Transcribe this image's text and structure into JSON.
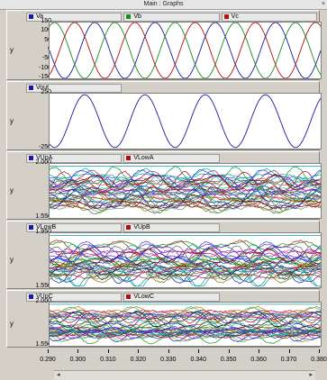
{
  "window": {
    "title": "Main : Graphs",
    "close_glyph": "×"
  },
  "chart_data": [
    {
      "type": "line",
      "ylabel": "y",
      "ylim": [
        -150,
        150
      ],
      "yticks": [
        "150",
        "100",
        "50",
        "0",
        "-50",
        "-100",
        "-150"
      ],
      "series": [
        {
          "name": "Va",
          "color": "#1a1a9a"
        },
        {
          "name": "Vb",
          "color": "#1a8a1a"
        },
        {
          "name": "Vc",
          "color": "#b01010"
        }
      ],
      "x": [
        0.29,
        0.38
      ],
      "wave": {
        "amplitude": 150,
        "frequency_hz": 50,
        "phases_deg": [
          0,
          -120,
          120
        ]
      }
    },
    {
      "type": "line",
      "ylabel": "y",
      "ylim": [
        -250,
        250
      ],
      "yticks": [
        "250",
        "-250"
      ],
      "series": [
        {
          "name": "Vout",
          "color": "#1a1a9a"
        }
      ],
      "x": [
        0.29,
        0.38
      ],
      "wave": {
        "amplitude": 240,
        "frequency_hz": 50,
        "phases_deg": [
          60
        ]
      }
    },
    {
      "type": "line",
      "ylabel": "y",
      "ylim": [
        1.55,
        2.0
      ],
      "yticks": [
        "2.000",
        "1.550"
      ],
      "series": [
        {
          "name": "VUpA",
          "color": "#1a1a9a"
        },
        {
          "name": "VLowA",
          "color": "#b01010"
        }
      ],
      "x": [
        0.29,
        0.38
      ]
    },
    {
      "type": "line",
      "ylabel": "y",
      "ylim": [
        1.55,
        1.95
      ],
      "yticks": [
        "1.950",
        "1.550"
      ],
      "series": [
        {
          "name": "VLowB",
          "color": "#1a1a9a"
        },
        {
          "name": "VUpB",
          "color": "#b01010"
        }
      ],
      "x": [
        0.29,
        0.38
      ]
    },
    {
      "type": "line",
      "ylabel": "y",
      "ylim": [
        1.55,
        2.0
      ],
      "yticks": [
        "2.000",
        "1.550"
      ],
      "series": [
        {
          "name": "VUpC",
          "color": "#1a1a9a"
        },
        {
          "name": "VLowC",
          "color": "#b01010"
        }
      ],
      "x": [
        0.29,
        0.38
      ]
    }
  ],
  "xaxis": {
    "ticks": [
      "0.290",
      "0.300",
      "0.310",
      "0.320",
      "0.330",
      "0.340",
      "0.350",
      "0.360",
      "0.370",
      "0.380"
    ],
    "xlim": [
      0.29,
      0.38
    ]
  },
  "scroll": {
    "left_glyph": "◂",
    "right_glyph": "▸"
  },
  "line_palette": [
    "#1a1a9a",
    "#1a8a1a",
    "#b01010",
    "#0aa0a0",
    "#9a2090",
    "#8a6a00",
    "#111111",
    "#d07000",
    "#2050d0",
    "#50b050",
    "#a00030",
    "#606060",
    "#00c080",
    "#c040c0",
    "#3030ff"
  ]
}
